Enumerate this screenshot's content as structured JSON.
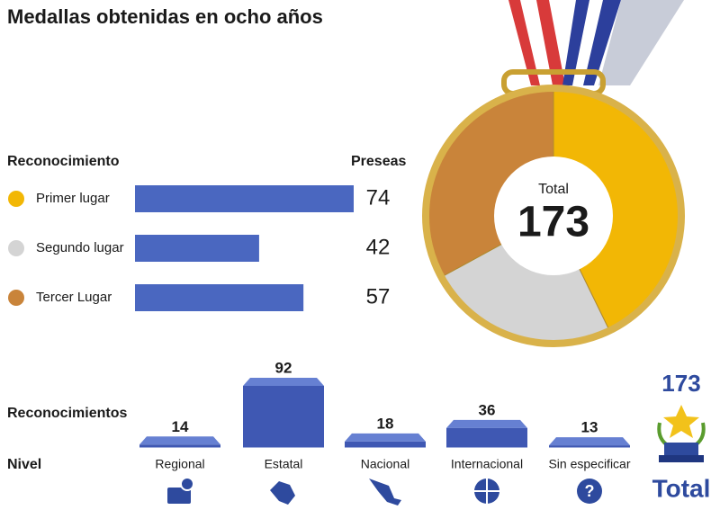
{
  "title": "Medallas obtenidas en ocho años",
  "chart_data": [
    {
      "type": "hbar",
      "category_label": "Reconocimiento",
      "value_label": "Preseas",
      "categories": [
        "Primer lugar",
        "Segundo lugar",
        "Tercer Lugar"
      ],
      "values": [
        74,
        42,
        57
      ],
      "color": "#4a67c0",
      "marker_colors": [
        "#f2b705",
        "#d4d4d4",
        "#c9843a"
      ],
      "xlim": [
        0,
        74
      ]
    },
    {
      "type": "bar3d",
      "label": "Reconocimientos",
      "category_label": "Nivel",
      "categories": [
        "Regional",
        "Estatal",
        "Nacional",
        "Internacional",
        "Sin especificar"
      ],
      "values": [
        14,
        92,
        18,
        36,
        13
      ],
      "color": "#3f58b3",
      "top_color": "#6680d2",
      "ylim": [
        0,
        92
      ]
    }
  ],
  "medal": {
    "label": "Total",
    "value": 173
  },
  "total": {
    "value": 173,
    "label": "Total"
  }
}
